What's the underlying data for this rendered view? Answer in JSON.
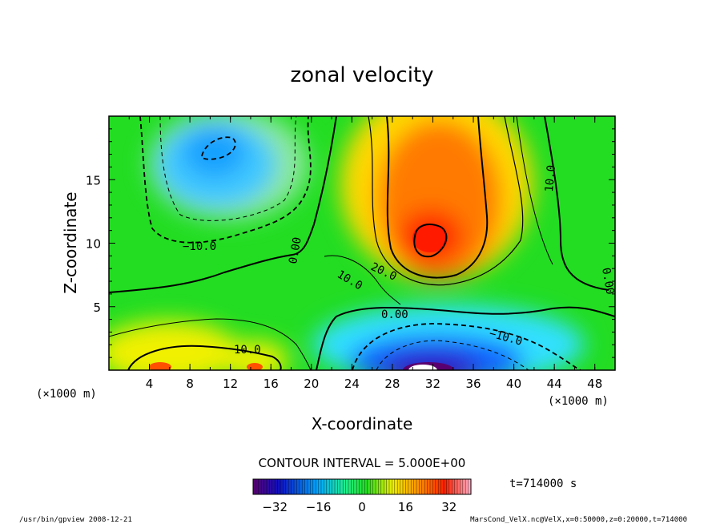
{
  "chart_data": {
    "type": "heatmap",
    "title": "zonal velocity",
    "xlabel": "X-coordinate",
    "ylabel": "Z-coordinate",
    "x_unit_left": "(×1000 m)",
    "x_unit_right": "(×1000 m)",
    "xlim": [
      0,
      50
    ],
    "ylim": [
      0,
      20
    ],
    "x_ticks": [
      "4",
      "8",
      "12",
      "16",
      "20",
      "24",
      "28",
      "32",
      "36",
      "40",
      "44",
      "48"
    ],
    "y_ticks": [
      "5",
      "10",
      "15"
    ],
    "contour_interval_text": "CONTOUR INTERVAL = 5.000E+00",
    "time_text": "t=714000 s",
    "colorbar": {
      "range": [
        -40,
        40
      ],
      "ticks": [
        "−32",
        "−16",
        "0",
        "16",
        "32"
      ],
      "colormap": "rainbow (purple-blue-cyan-green-yellow-red-pink)"
    },
    "contour_labels": [
      "−10.0",
      "0.00",
      "10.0",
      "20.0",
      "0.00",
      "−10.0",
      "10.0",
      "10.0",
      "0.00"
    ],
    "features": [
      {
        "kind": "min",
        "x": 11,
        "z": 16,
        "value": -15
      },
      {
        "kind": "max",
        "x": 32,
        "z": 10.5,
        "value": 33
      },
      {
        "kind": "min",
        "x": 31,
        "z": 0.3,
        "value": -40
      },
      {
        "kind": "max",
        "x": 14,
        "z": 0.5,
        "value": 20
      },
      {
        "kind": "max",
        "x": 5,
        "z": 0.5,
        "value": 20
      }
    ],
    "grid": false,
    "legend": "colorbar-bottom"
  },
  "footer": {
    "left": "/usr/bin/gpview  2008-12-21",
    "right": "MarsCond_VelX.nc@VelX,x=0:50000,z=0:20000,t=714000"
  }
}
